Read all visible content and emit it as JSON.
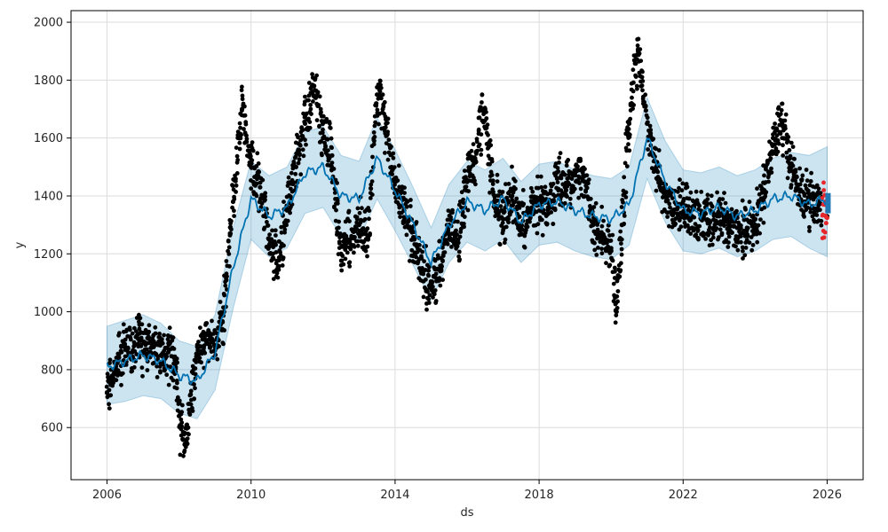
{
  "chart_data": {
    "type": "line",
    "title": "",
    "xlabel": "ds",
    "ylabel": "y",
    "xlim": [
      2005.0,
      2027.0
    ],
    "ylim": [
      420,
      2040
    ],
    "grid": true,
    "x_ticks": [
      {
        "value": 2006,
        "label": "2006"
      },
      {
        "value": 2010,
        "label": "2010"
      },
      {
        "value": 2014,
        "label": "2014"
      },
      {
        "value": 2018,
        "label": "2018"
      },
      {
        "value": 2022,
        "label": "2022"
      },
      {
        "value": 2026,
        "label": "2026"
      }
    ],
    "y_ticks": [
      {
        "value": 600,
        "label": "600"
      },
      {
        "value": 800,
        "label": "800"
      },
      {
        "value": 1000,
        "label": "1000"
      },
      {
        "value": 1200,
        "label": "1200"
      },
      {
        "value": 1400,
        "label": "1400"
      },
      {
        "value": 1600,
        "label": "1600"
      },
      {
        "value": 1800,
        "label": "1800"
      },
      {
        "value": 2000,
        "label": "2000"
      }
    ],
    "colors": {
      "observed": "#000000",
      "forecast_line": "#0072B2",
      "interval_fill": "#0072B2",
      "recent_highlight": "#e6262b",
      "forecast_end": "#1f77b4"
    },
    "series": [
      {
        "role": "forecast",
        "x": [
          2006.0,
          2006.5,
          2007.0,
          2007.5,
          2008.0,
          2008.5,
          2009.0,
          2009.5,
          2010.0,
          2010.5,
          2011.0,
          2011.5,
          2012.0,
          2012.5,
          2013.0,
          2013.5,
          2014.0,
          2014.5,
          2015.0,
          2015.5,
          2016.0,
          2016.5,
          2017.0,
          2017.5,
          2018.0,
          2018.5,
          2019.0,
          2019.5,
          2020.0,
          2020.5,
          2021.0,
          2021.5,
          2022.0,
          2022.5,
          2023.0,
          2023.5,
          2024.0,
          2024.5,
          2025.0,
          2025.5,
          2026.0
        ],
        "y": [
          810,
          830,
          850,
          830,
          780,
          760,
          860,
          1150,
          1390,
          1330,
          1360,
          1480,
          1500,
          1400,
          1390,
          1530,
          1420,
          1300,
          1170,
          1300,
          1380,
          1350,
          1390,
          1310,
          1370,
          1380,
          1350,
          1330,
          1320,
          1370,
          1600,
          1450,
          1350,
          1340,
          1360,
          1330,
          1350,
          1390,
          1400,
          1370,
          1390
        ]
      },
      {
        "role": "interval_upper",
        "x": [
          2006.0,
          2006.5,
          2007.0,
          2007.5,
          2008.0,
          2008.5,
          2009.0,
          2009.5,
          2010.0,
          2010.5,
          2011.0,
          2011.5,
          2012.0,
          2012.5,
          2013.0,
          2013.5,
          2014.0,
          2014.5,
          2015.0,
          2015.5,
          2016.0,
          2016.5,
          2017.0,
          2017.5,
          2018.0,
          2018.5,
          2019.0,
          2019.5,
          2020.0,
          2020.5,
          2021.0,
          2021.5,
          2022.0,
          2022.5,
          2023.0,
          2023.5,
          2024.0,
          2024.5,
          2025.0,
          2025.5,
          2026.0
        ],
        "y": [
          950,
          970,
          990,
          960,
          900,
          880,
          990,
          1290,
          1520,
          1470,
          1500,
          1620,
          1640,
          1540,
          1520,
          1670,
          1560,
          1430,
          1290,
          1440,
          1520,
          1490,
          1530,
          1450,
          1510,
          1520,
          1490,
          1470,
          1460,
          1500,
          1740,
          1590,
          1490,
          1480,
          1500,
          1470,
          1490,
          1530,
          1550,
          1540,
          1570
        ]
      },
      {
        "role": "interval_lower",
        "x": [
          2006.0,
          2006.5,
          2007.0,
          2007.5,
          2008.0,
          2008.5,
          2009.0,
          2009.5,
          2010.0,
          2010.5,
          2011.0,
          2011.5,
          2012.0,
          2012.5,
          2013.0,
          2013.5,
          2014.0,
          2014.5,
          2015.0,
          2015.5,
          2016.0,
          2016.5,
          2017.0,
          2017.5,
          2018.0,
          2018.5,
          2019.0,
          2019.5,
          2020.0,
          2020.5,
          2021.0,
          2021.5,
          2022.0,
          2022.5,
          2023.0,
          2023.5,
          2024.0,
          2024.5,
          2025.0,
          2025.5,
          2026.0
        ],
        "y": [
          680,
          690,
          710,
          700,
          650,
          630,
          730,
          1010,
          1250,
          1190,
          1220,
          1340,
          1360,
          1260,
          1250,
          1390,
          1280,
          1160,
          1040,
          1170,
          1240,
          1210,
          1250,
          1170,
          1230,
          1240,
          1210,
          1190,
          1180,
          1230,
          1460,
          1310,
          1210,
          1200,
          1220,
          1190,
          1210,
          1250,
          1260,
          1220,
          1190
        ]
      },
      {
        "role": "observed",
        "x": [
          2006.0,
          2006.1,
          2006.2,
          2006.3,
          2006.5,
          2006.7,
          2006.9,
          2007.1,
          2007.3,
          2007.5,
          2007.7,
          2007.9,
          2008.0,
          2008.1,
          2008.25,
          2008.5,
          2008.75,
          2009.0,
          2009.25,
          2009.5,
          2009.75,
          2010.0,
          2010.25,
          2010.5,
          2010.75,
          2011.0,
          2011.25,
          2011.5,
          2011.75,
          2012.0,
          2012.25,
          2012.5,
          2012.75,
          2013.0,
          2013.25,
          2013.5,
          2013.75,
          2014.0,
          2014.25,
          2014.5,
          2014.75,
          2015.0,
          2015.25,
          2015.5,
          2015.75,
          2016.0,
          2016.25,
          2016.5,
          2016.75,
          2017.0,
          2017.25,
          2017.5,
          2017.75,
          2018.0,
          2018.25,
          2018.5,
          2018.75,
          2019.0,
          2019.25,
          2019.5,
          2019.75,
          2020.0,
          2020.15,
          2020.3,
          2020.5,
          2020.75,
          2021.0,
          2021.25,
          2021.5,
          2021.75,
          2022.0,
          2022.25,
          2022.5,
          2022.75,
          2023.0,
          2023.25,
          2023.5,
          2023.75,
          2024.0,
          2024.25,
          2024.5,
          2024.75,
          2025.0,
          2025.25,
          2025.5,
          2025.75,
          2026.0
        ],
        "y": [
          720,
          750,
          790,
          830,
          880,
          860,
          900,
          870,
          880,
          850,
          860,
          820,
          640,
          560,
          600,
          850,
          920,
          880,
          1000,
          1380,
          1700,
          1500,
          1430,
          1250,
          1150,
          1350,
          1500,
          1650,
          1780,
          1600,
          1540,
          1200,
          1250,
          1300,
          1250,
          1750,
          1650,
          1450,
          1350,
          1250,
          1150,
          1080,
          1150,
          1300,
          1250,
          1450,
          1550,
          1700,
          1380,
          1320,
          1400,
          1300,
          1350,
          1380,
          1360,
          1460,
          1420,
          1480,
          1450,
          1300,
          1250,
          1220,
          1000,
          1300,
          1650,
          1900,
          1650,
          1500,
          1400,
          1350,
          1370,
          1330,
          1320,
          1310,
          1330,
          1300,
          1290,
          1280,
          1300,
          1420,
          1600,
          1650,
          1500,
          1420,
          1390,
          1380,
          1330
        ]
      }
    ]
  }
}
